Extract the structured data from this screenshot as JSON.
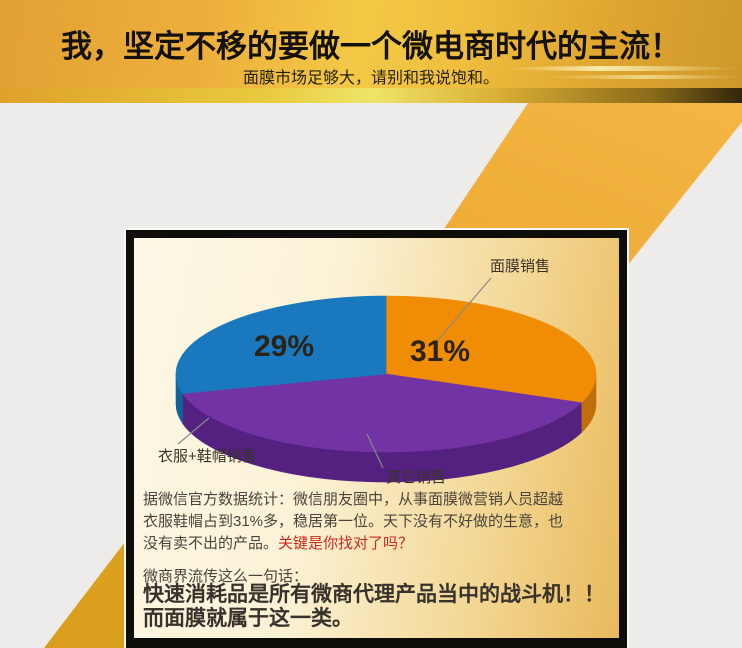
{
  "header": {
    "title": "我，坚定不移的要做一个微电商时代的主流！",
    "subtitle": "面膜市场足够大，请别和我说饱和。"
  },
  "chart_data": {
    "type": "pie",
    "style": "3d-exploded-flat",
    "title": "",
    "start_angle_deg": 90,
    "direction": "clockwise",
    "legend_position": "callout-labels",
    "slices": [
      {
        "label": "面膜销售",
        "value": 31,
        "display": "31%",
        "color": "#F18C05",
        "side_color": "#C06E08"
      },
      {
        "label": "其它销售",
        "value": 40,
        "display": "",
        "color": "#7233A4",
        "side_color": "#552181"
      },
      {
        "label": "衣服+鞋帽销售",
        "value": 29,
        "display": "29%",
        "color": "#1A79BE",
        "side_color": "#10629B"
      }
    ]
  },
  "panel": {
    "stats_lines": [
      "据微信官方数据统计：微信朋友圈中，从事面膜微营销人员超越",
      "衣服鞋帽占到31%多，稳居第一位。天下没有不好做的生意，也",
      "没有卖不出的产品。"
    ],
    "stats_highlight": "关键是你找对了吗？",
    "quote_intro": "微商界流传这么一句话：",
    "quote_lines": [
      "快速消耗品是所有微商代理产品当中的战斗机！！",
      "而面膜就属于这一类。"
    ]
  },
  "colors": {
    "header_gold": "#EFB83C",
    "strip_yellow": "#EFE468",
    "background_gray": "#EDECEA",
    "panel_cream": "#FDF8E6",
    "panel_tan": "#E9B95C",
    "highlight_red": "#CC2A1E",
    "border_black": "#0E0D0A"
  }
}
